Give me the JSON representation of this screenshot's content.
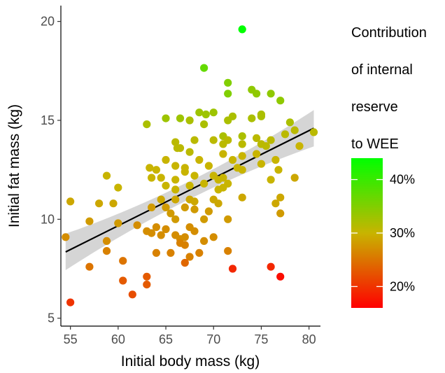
{
  "chart_data": {
    "type": "scatter",
    "xlabel": "Initial body mass (kg)",
    "ylabel": "Initial fat mass (kg)",
    "xlim": [
      54,
      81.2
    ],
    "ylim": [
      4.6,
      20.8
    ],
    "x_ticks": [
      "55",
      "60",
      "65",
      "70",
      "75",
      "80"
    ],
    "y_ticks": [
      "5",
      "10",
      "15",
      "20"
    ],
    "grid": false,
    "regression": {
      "x": [
        54.5,
        80.5
      ],
      "y": [
        8.35,
        14.6
      ],
      "ci_half_width_ends": 0.92,
      "ci_half_width_center": 0.45
    },
    "legend": {
      "title_lines": [
        "Contribution",
        "of internal",
        "reserve",
        "to WEE"
      ],
      "placement": "right",
      "range": [
        16,
        44
      ],
      "ticks": [
        "20%",
        "30%",
        "40%"
      ],
      "tick_values": [
        20,
        30,
        40
      ],
      "colors": {
        "low": "#ff0000",
        "mid": "#c8b400",
        "high": "#00ff00"
      }
    },
    "points": [
      [
        73.0,
        19.6,
        44
      ],
      [
        69.0,
        17.65,
        37
      ],
      [
        71.5,
        16.9,
        35
      ],
      [
        71.5,
        16.35,
        35
      ],
      [
        74.0,
        16.55,
        34
      ],
      [
        74.5,
        16.35,
        34
      ],
      [
        76.0,
        16.35,
        34
      ],
      [
        77.0,
        16.0,
        34
      ],
      [
        68.5,
        15.4,
        33
      ],
      [
        69.2,
        15.3,
        33
      ],
      [
        70.0,
        15.4,
        33
      ],
      [
        72.0,
        15.2,
        32
      ],
      [
        71.5,
        15.0,
        32
      ],
      [
        63.0,
        14.8,
        32
      ],
      [
        65.0,
        15.1,
        33
      ],
      [
        66.5,
        15.1,
        33
      ],
      [
        67.5,
        15.0,
        32
      ],
      [
        69.0,
        14.8,
        32
      ],
      [
        71.0,
        14.2,
        32
      ],
      [
        73.0,
        14.2,
        32
      ],
      [
        74.0,
        15.1,
        32
      ],
      [
        75.0,
        15.3,
        32
      ],
      [
        75.0,
        15.2,
        32
      ],
      [
        77.5,
        14.3,
        31
      ],
      [
        78.0,
        14.9,
        32
      ],
      [
        78.5,
        14.5,
        31
      ],
      [
        80.5,
        14.4,
        31
      ],
      [
        66.0,
        13.9,
        31
      ],
      [
        66.2,
        13.6,
        31
      ],
      [
        66.5,
        13.6,
        31
      ],
      [
        67.5,
        13.4,
        31
      ],
      [
        68.0,
        14.0,
        31
      ],
      [
        70.0,
        14.0,
        31
      ],
      [
        71.5,
        14.0,
        31
      ],
      [
        71.0,
        13.8,
        31
      ],
      [
        73.0,
        13.8,
        31
      ],
      [
        74.5,
        14.1,
        31
      ],
      [
        75.5,
        13.7,
        31
      ],
      [
        76.0,
        14.0,
        31
      ],
      [
        75.0,
        13.8,
        31
      ],
      [
        64.0,
        12.5,
        30
      ],
      [
        65.0,
        13.0,
        30
      ],
      [
        66.0,
        12.7,
        30
      ],
      [
        67.0,
        12.6,
        30
      ],
      [
        68.5,
        13.0,
        30
      ],
      [
        69.5,
        12.7,
        30
      ],
      [
        71.0,
        13.3,
        30
      ],
      [
        72.0,
        13.0,
        30
      ],
      [
        73.0,
        13.2,
        30
      ],
      [
        74.5,
        13.3,
        30
      ],
      [
        75.0,
        12.8,
        30
      ],
      [
        76.5,
        13.0,
        30
      ],
      [
        79.0,
        13.7,
        30
      ],
      [
        63.5,
        12.1,
        30
      ],
      [
        63.3,
        12.6,
        30
      ],
      [
        64.5,
        12.1,
        30
      ],
      [
        66.0,
        12.0,
        30
      ],
      [
        67.0,
        12.4,
        30
      ],
      [
        68.0,
        12.2,
        30
      ],
      [
        70.0,
        12.2,
        30
      ],
      [
        70.5,
        12.0,
        30
      ],
      [
        71.0,
        12.1,
        30
      ],
      [
        72.5,
        12.6,
        30
      ],
      [
        73.0,
        12.5,
        30
      ],
      [
        76.0,
        12.0,
        30
      ],
      [
        76.8,
        12.5,
        30
      ],
      [
        78.5,
        12.1,
        29
      ],
      [
        58.8,
        12.2,
        30
      ],
      [
        60.0,
        11.6,
        30
      ],
      [
        65.0,
        11.7,
        30
      ],
      [
        66.0,
        11.5,
        30
      ],
      [
        67.5,
        11.7,
        30
      ],
      [
        69.0,
        11.8,
        30
      ],
      [
        70.5,
        11.5,
        30
      ],
      [
        71.5,
        11.8,
        30
      ],
      [
        71.0,
        11.6,
        30
      ],
      [
        55.0,
        10.9,
        29
      ],
      [
        58.0,
        10.8,
        29
      ],
      [
        59.5,
        10.8,
        29
      ],
      [
        64.5,
        11.0,
        29
      ],
      [
        66.0,
        11.0,
        29
      ],
      [
        67.5,
        11.0,
        29
      ],
      [
        68.0,
        10.9,
        29
      ],
      [
        70.0,
        11.0,
        29
      ],
      [
        70.5,
        10.8,
        29
      ],
      [
        73.0,
        11.1,
        29
      ],
      [
        76.5,
        10.8,
        29
      ],
      [
        77.0,
        11.1,
        29
      ],
      [
        57.0,
        9.9,
        28
      ],
      [
        63.5,
        10.6,
        28
      ],
      [
        65.0,
        10.6,
        28
      ],
      [
        66.0,
        10.0,
        28
      ],
      [
        67.0,
        10.6,
        28
      ],
      [
        68.0,
        10.5,
        28
      ],
      [
        69.0,
        10.0,
        28
      ],
      [
        69.5,
        10.4,
        28
      ],
      [
        71.5,
        10.0,
        28
      ],
      [
        77.0,
        10.3,
        28
      ],
      [
        54.5,
        9.1,
        27
      ],
      [
        58.8,
        8.9,
        27
      ],
      [
        60.0,
        9.8,
        28
      ],
      [
        62.0,
        9.7,
        27
      ],
      [
        63.0,
        9.4,
        27
      ],
      [
        63.5,
        9.3,
        27
      ],
      [
        64.0,
        9.6,
        27
      ],
      [
        64.5,
        9.2,
        27
      ],
      [
        65.0,
        9.5,
        27
      ],
      [
        65.5,
        10.3,
        28
      ],
      [
        66.0,
        9.2,
        27
      ],
      [
        66.5,
        9.0,
        27
      ],
      [
        67.0,
        9.1,
        27
      ],
      [
        67.5,
        9.6,
        27
      ],
      [
        68.0,
        9.4,
        27
      ],
      [
        69.0,
        8.9,
        27
      ],
      [
        70.0,
        9.1,
        27
      ],
      [
        58.8,
        8.4,
        26
      ],
      [
        64.0,
        8.3,
        26
      ],
      [
        65.5,
        8.3,
        26
      ],
      [
        66.5,
        8.8,
        26
      ],
      [
        67.0,
        8.7,
        26
      ],
      [
        67.5,
        8.1,
        26
      ],
      [
        68.5,
        8.3,
        26
      ],
      [
        71.5,
        8.4,
        26
      ],
      [
        57.0,
        7.6,
        25
      ],
      [
        60.5,
        7.9,
        25
      ],
      [
        67.0,
        7.8,
        24
      ],
      [
        63.0,
        7.1,
        23
      ],
      [
        60.5,
        6.9,
        23
      ],
      [
        63.0,
        6.7,
        23
      ],
      [
        61.5,
        6.2,
        22
      ],
      [
        55.0,
        5.8,
        20
      ],
      [
        72.0,
        7.5,
        19
      ],
      [
        76.0,
        7.6,
        19
      ],
      [
        77.0,
        7.1,
        17
      ]
    ]
  }
}
